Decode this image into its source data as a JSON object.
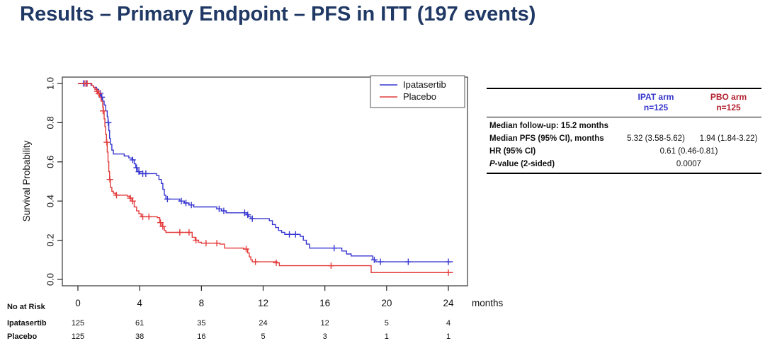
{
  "title": "Results – Primary Endpoint – PFS in ITT (197 events)",
  "colors": {
    "title": "#1f3864",
    "ipat_blue": "#3333cc",
    "pbo_red": "#b22230",
    "curve_blue": "#3737d1",
    "curve_red": "#e43b3b",
    "axis": "#222222"
  },
  "chart_data": {
    "type": "line",
    "subtype": "kaplan-meier-step",
    "title": "",
    "xlabel": "months",
    "ylabel": "Survival Probability",
    "xlim": [
      0,
      24
    ],
    "ylim": [
      0.0,
      1.0
    ],
    "x_ticks": [
      "0",
      "4",
      "8",
      "12",
      "16",
      "20",
      "24"
    ],
    "y_ticks": [
      "0.0",
      "0.2",
      "0.4",
      "0.6",
      "0.8",
      "1.0"
    ],
    "grid": "off",
    "legend_position": "top-right-inside",
    "series": [
      {
        "name": "Ipatasertib",
        "color": "#3737d1",
        "steps": [
          [
            0,
            1.0
          ],
          [
            0.7,
            1.0
          ],
          [
            0.85,
            0.99
          ],
          [
            1.0,
            0.98
          ],
          [
            1.2,
            0.97
          ],
          [
            1.35,
            0.95
          ],
          [
            1.5,
            0.93
          ],
          [
            1.6,
            0.91
          ],
          [
            1.7,
            0.89
          ],
          [
            1.8,
            0.86
          ],
          [
            1.9,
            0.83
          ],
          [
            1.95,
            0.8
          ],
          [
            2.0,
            0.76
          ],
          [
            2.05,
            0.72
          ],
          [
            2.1,
            0.69
          ],
          [
            2.2,
            0.66
          ],
          [
            2.3,
            0.64
          ],
          [
            3.0,
            0.63
          ],
          [
            3.3,
            0.62
          ],
          [
            3.5,
            0.61
          ],
          [
            3.65,
            0.59
          ],
          [
            3.75,
            0.57
          ],
          [
            3.85,
            0.55
          ],
          [
            4.0,
            0.54
          ],
          [
            5.1,
            0.53
          ],
          [
            5.25,
            0.51
          ],
          [
            5.4,
            0.49
          ],
          [
            5.5,
            0.46
          ],
          [
            5.6,
            0.43
          ],
          [
            5.7,
            0.41
          ],
          [
            6.6,
            0.4
          ],
          [
            6.9,
            0.39
          ],
          [
            7.2,
            0.38
          ],
          [
            7.5,
            0.37
          ],
          [
            9.0,
            0.36
          ],
          [
            9.3,
            0.35
          ],
          [
            9.6,
            0.34
          ],
          [
            10.9,
            0.33
          ],
          [
            11.05,
            0.32
          ],
          [
            11.2,
            0.31
          ],
          [
            12.4,
            0.3
          ],
          [
            12.6,
            0.28
          ],
          [
            12.8,
            0.265
          ],
          [
            13.0,
            0.25
          ],
          [
            13.2,
            0.24
          ],
          [
            13.4,
            0.23
          ],
          [
            14.4,
            0.22
          ],
          [
            14.6,
            0.2
          ],
          [
            14.8,
            0.18
          ],
          [
            15.0,
            0.16
          ],
          [
            17.1,
            0.145
          ],
          [
            17.4,
            0.13
          ],
          [
            17.7,
            0.12
          ],
          [
            19.1,
            0.1
          ],
          [
            19.3,
            0.09
          ],
          [
            24.3,
            0.09
          ]
        ],
        "censors": [
          [
            0.35,
            1.0
          ],
          [
            0.55,
            1.0
          ],
          [
            1.45,
            0.95
          ],
          [
            1.55,
            0.93
          ],
          [
            1.97,
            0.8
          ],
          [
            3.55,
            0.61
          ],
          [
            3.8,
            0.57
          ],
          [
            3.95,
            0.55
          ],
          [
            4.2,
            0.54
          ],
          [
            4.4,
            0.54
          ],
          [
            5.8,
            0.41
          ],
          [
            6.7,
            0.4
          ],
          [
            7.0,
            0.39
          ],
          [
            7.35,
            0.38
          ],
          [
            9.15,
            0.36
          ],
          [
            9.45,
            0.35
          ],
          [
            10.8,
            0.34
          ],
          [
            11.0,
            0.33
          ],
          [
            11.3,
            0.31
          ],
          [
            13.7,
            0.23
          ],
          [
            14.1,
            0.23
          ],
          [
            16.6,
            0.16
          ],
          [
            19.2,
            0.1
          ],
          [
            19.6,
            0.09
          ],
          [
            21.4,
            0.09
          ],
          [
            24.0,
            0.09
          ]
        ]
      },
      {
        "name": "Placebo",
        "color": "#e43b3b",
        "steps": [
          [
            0,
            1.0
          ],
          [
            0.8,
            1.0
          ],
          [
            0.9,
            0.99
          ],
          [
            1.0,
            0.98
          ],
          [
            1.1,
            0.97
          ],
          [
            1.2,
            0.96
          ],
          [
            1.3,
            0.95
          ],
          [
            1.4,
            0.93
          ],
          [
            1.5,
            0.91
          ],
          [
            1.6,
            0.88
          ],
          [
            1.65,
            0.86
          ],
          [
            1.7,
            0.82
          ],
          [
            1.75,
            0.78
          ],
          [
            1.8,
            0.74
          ],
          [
            1.85,
            0.7
          ],
          [
            1.9,
            0.65
          ],
          [
            1.95,
            0.6
          ],
          [
            2.0,
            0.55
          ],
          [
            2.05,
            0.51
          ],
          [
            2.1,
            0.47
          ],
          [
            2.2,
            0.45
          ],
          [
            2.3,
            0.44
          ],
          [
            2.45,
            0.43
          ],
          [
            3.2,
            0.425
          ],
          [
            3.35,
            0.415
          ],
          [
            3.5,
            0.4
          ],
          [
            3.65,
            0.37
          ],
          [
            3.8,
            0.35
          ],
          [
            3.95,
            0.335
          ],
          [
            4.1,
            0.32
          ],
          [
            5.15,
            0.315
          ],
          [
            5.3,
            0.29
          ],
          [
            5.45,
            0.27
          ],
          [
            5.6,
            0.25
          ],
          [
            5.7,
            0.24
          ],
          [
            7.4,
            0.215
          ],
          [
            7.6,
            0.2
          ],
          [
            7.8,
            0.19
          ],
          [
            8.0,
            0.185
          ],
          [
            9.2,
            0.18
          ],
          [
            9.5,
            0.16
          ],
          [
            10.75,
            0.155
          ],
          [
            11.0,
            0.135
          ],
          [
            11.1,
            0.115
          ],
          [
            11.2,
            0.1
          ],
          [
            11.3,
            0.09
          ],
          [
            12.9,
            0.085
          ],
          [
            13.05,
            0.07
          ],
          [
            19.0,
            0.035
          ],
          [
            24.3,
            0.035
          ]
        ],
        "censors": [
          [
            0.45,
            1.0
          ],
          [
            0.6,
            1.0
          ],
          [
            1.25,
            0.96
          ],
          [
            1.35,
            0.95
          ],
          [
            1.63,
            0.86
          ],
          [
            1.87,
            0.7
          ],
          [
            2.07,
            0.51
          ],
          [
            2.5,
            0.43
          ],
          [
            3.4,
            0.415
          ],
          [
            3.55,
            0.4
          ],
          [
            4.2,
            0.32
          ],
          [
            4.6,
            0.32
          ],
          [
            5.35,
            0.29
          ],
          [
            5.5,
            0.27
          ],
          [
            6.6,
            0.24
          ],
          [
            7.2,
            0.24
          ],
          [
            7.65,
            0.2
          ],
          [
            8.3,
            0.185
          ],
          [
            9.0,
            0.185
          ],
          [
            10.9,
            0.155
          ],
          [
            11.5,
            0.09
          ],
          [
            12.85,
            0.085
          ],
          [
            16.4,
            0.07
          ],
          [
            24.0,
            0.035
          ]
        ]
      }
    ],
    "risk_table": {
      "title": "No at Risk",
      "time_points": [
        0,
        4,
        8,
        12,
        16,
        20,
        24
      ],
      "rows": [
        {
          "name": "Ipatasertib",
          "values": [
            "125",
            "61",
            "35",
            "24",
            "12",
            "5",
            "4"
          ]
        },
        {
          "name": "Placebo",
          "values": [
            "125",
            "38",
            "16",
            "5",
            "3",
            "1",
            "1"
          ]
        }
      ]
    }
  },
  "summary_table": {
    "col_headers": [
      {
        "line1": "IPAT arm",
        "line2": "n=125"
      },
      {
        "line1": "PBO arm",
        "line2": "n=125"
      }
    ],
    "rows": [
      {
        "label": "Median follow-up: 15.2 months"
      },
      {
        "label": "Median PFS (95% CI), months",
        "values": [
          "5.32 (3.58-5.62)",
          "1.94 (1.84-3.22)"
        ]
      },
      {
        "label": "HR (95% CI)",
        "merged_value": "0.61 (0.46-0.81)"
      },
      {
        "label_prefix_italic": "P",
        "label": "-value (2-sided)",
        "merged_value": "0.0007"
      }
    ]
  }
}
